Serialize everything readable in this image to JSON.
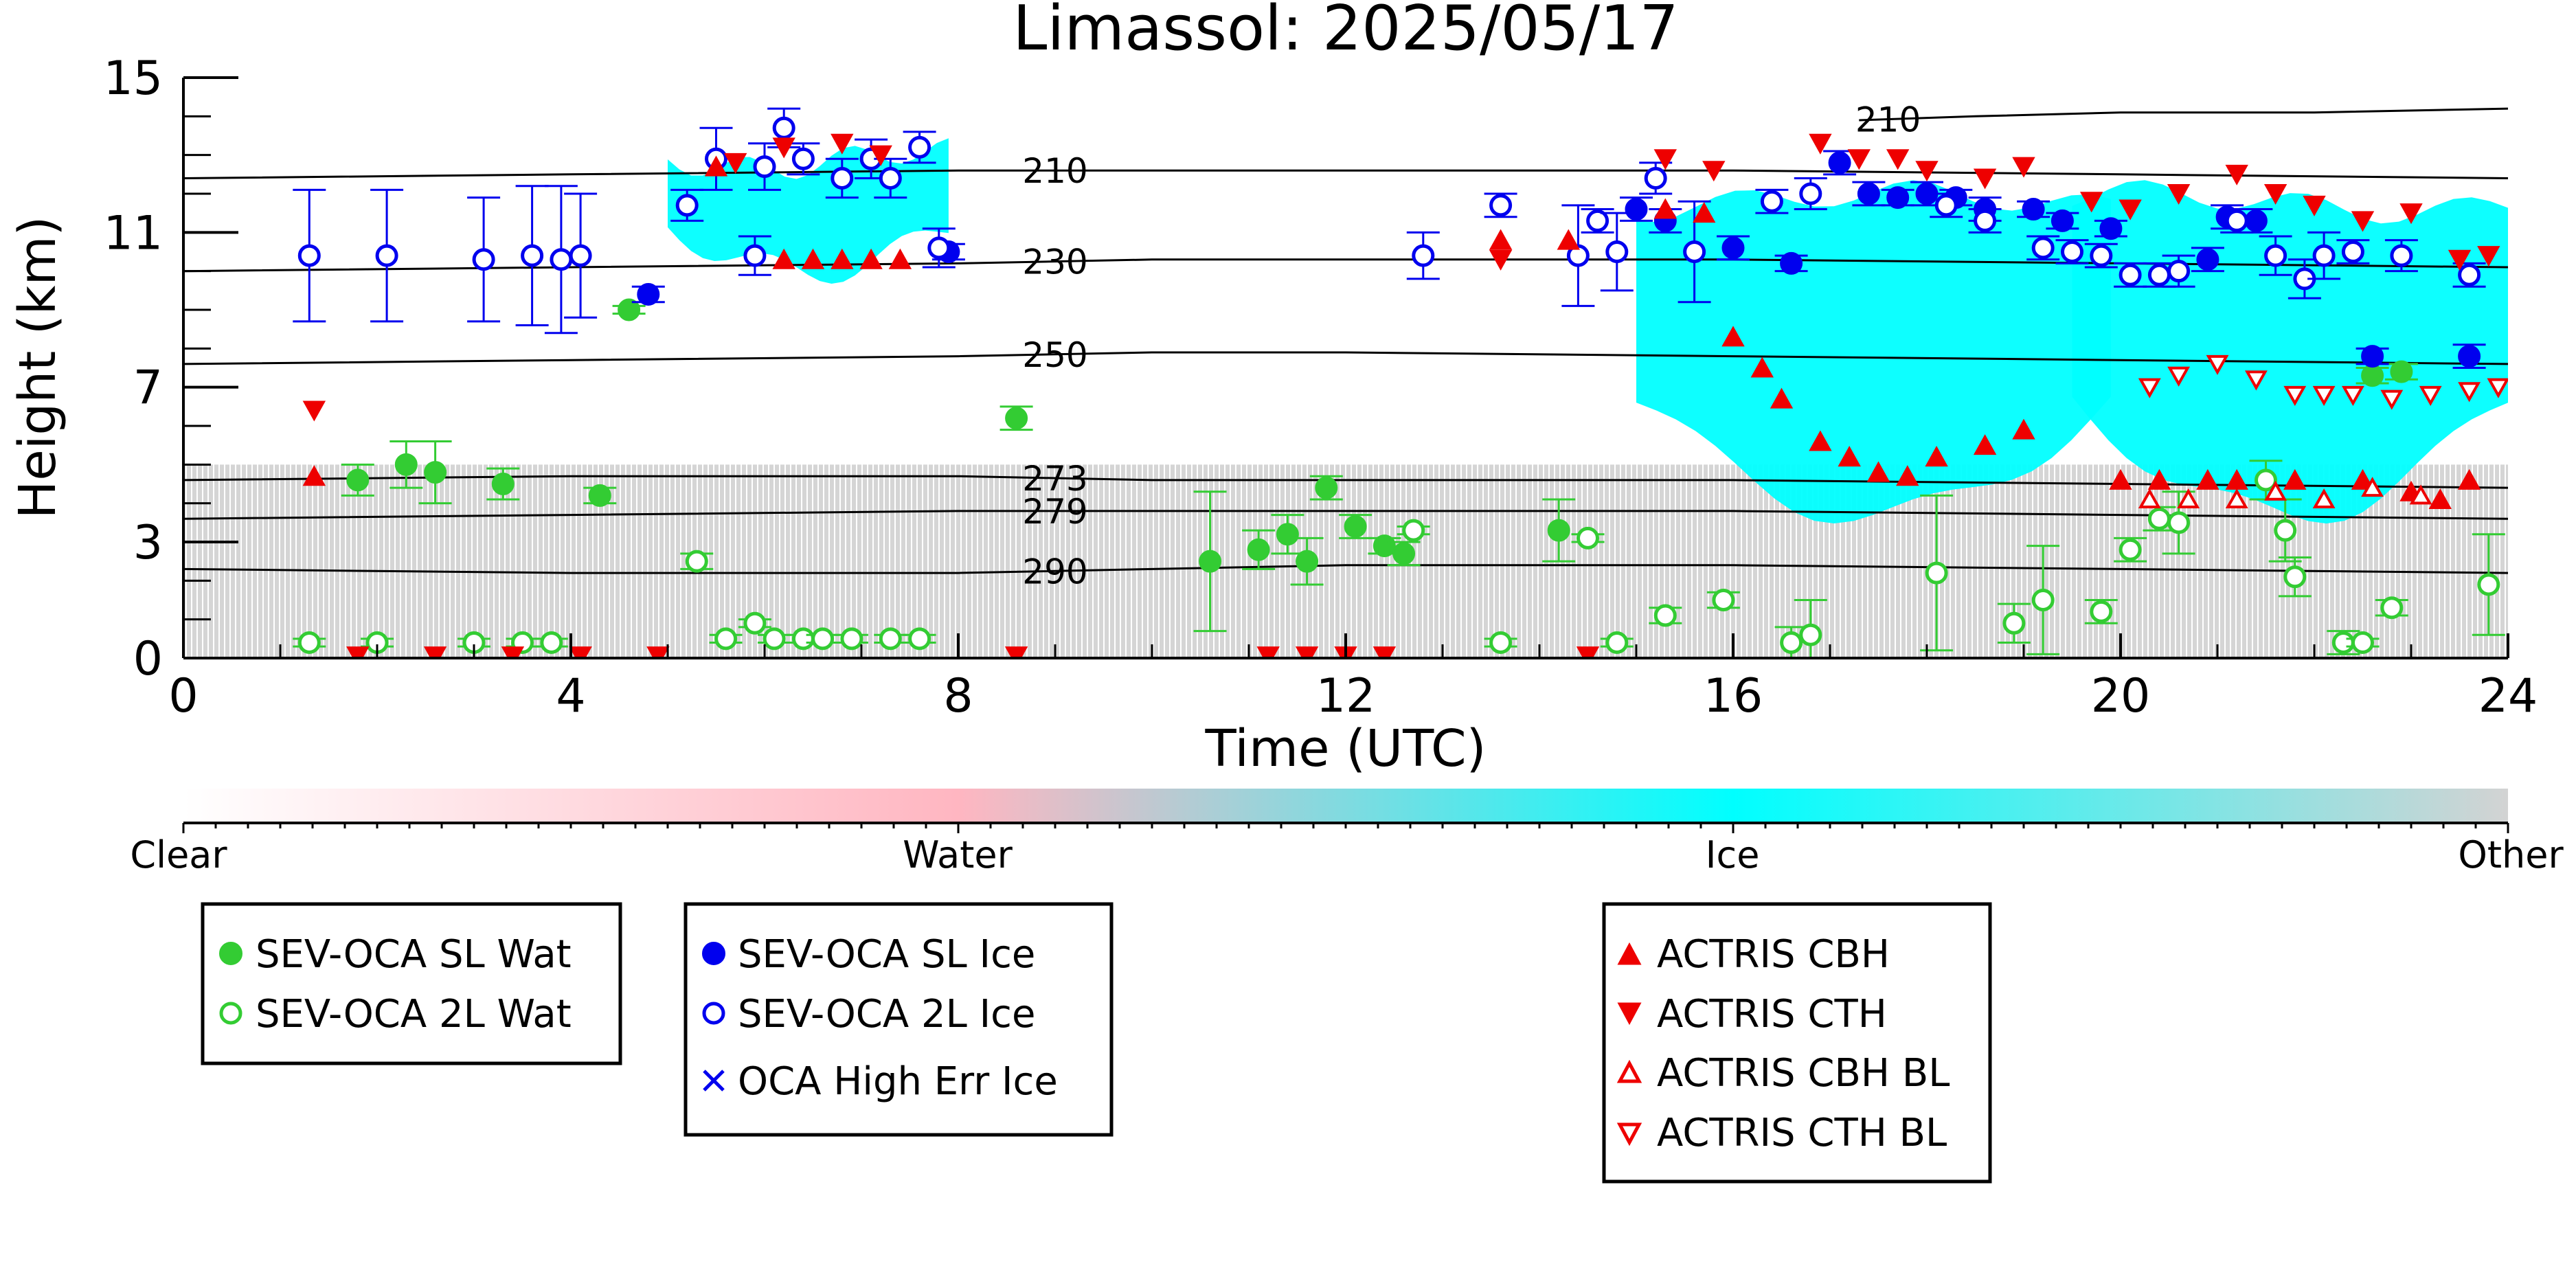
{
  "chart_data": {
    "type": "scatter",
    "title": "Limassol: 2025/05/17",
    "xlabel": "Time (UTC)",
    "ylabel": "Height (km)",
    "xlim": [
      0,
      24
    ],
    "ylim": [
      0,
      15
    ],
    "x_ticks": [
      "0",
      "4",
      "8",
      "12",
      "16",
      "20",
      "24"
    ],
    "y_ticks": [
      "0",
      "3",
      "7",
      "11",
      "15"
    ],
    "background_field": {
      "type": "heatmap",
      "classes": [
        "Clear",
        "Water",
        "Ice",
        "Other"
      ],
      "colors": {
        "Clear": "#ffffff",
        "Water": "#ffb6c1",
        "Ice": "#00ffff",
        "Other": "#d3d3d3"
      },
      "ice_regions": [
        {
          "x": [
            5.0,
            7.9
          ],
          "y": [
            9.8,
            13.1
          ]
        },
        {
          "x": [
            15.0,
            19.9
          ],
          "y": [
            3.5,
            12.0
          ]
        },
        {
          "x": [
            19.5,
            24.0
          ],
          "y": [
            3.5,
            12.0
          ]
        }
      ],
      "other_regions": [
        {
          "x": [
            0.0,
            24.0
          ],
          "y": [
            0.0,
            5.0
          ]
        }
      ]
    },
    "temperature_contours": [
      {
        "label": "210",
        "x": [
          0,
          4,
          8,
          10,
          12,
          16,
          20,
          24
        ],
        "y": [
          12.4,
          12.5,
          12.6,
          12.6,
          12.6,
          12.6,
          12.5,
          12.4
        ]
      },
      {
        "label": "230",
        "x": [
          0,
          4,
          8,
          10,
          12,
          16,
          20,
          24
        ],
        "y": [
          10.0,
          10.1,
          10.2,
          10.3,
          10.3,
          10.3,
          10.2,
          10.1
        ]
      },
      {
        "label": "250",
        "x": [
          0,
          4,
          8,
          10,
          12,
          16,
          20,
          24
        ],
        "y": [
          7.6,
          7.7,
          7.8,
          7.9,
          7.9,
          7.8,
          7.7,
          7.6
        ]
      },
      {
        "label": "273",
        "x": [
          0,
          4,
          8,
          10,
          12,
          16,
          20,
          24
        ],
        "y": [
          4.6,
          4.7,
          4.7,
          4.6,
          4.6,
          4.6,
          4.5,
          4.4
        ]
      },
      {
        "label": "279",
        "x": [
          0,
          4,
          8,
          10,
          12,
          16,
          20,
          24
        ],
        "y": [
          3.6,
          3.7,
          3.8,
          3.8,
          3.8,
          3.8,
          3.7,
          3.6
        ]
      },
      {
        "label": "290",
        "x": [
          0,
          4,
          8,
          10,
          12,
          16,
          20,
          24
        ],
        "y": [
          2.3,
          2.2,
          2.2,
          2.3,
          2.4,
          2.4,
          2.3,
          2.2
        ]
      },
      {
        "label": "210",
        "x": [
          17.3,
          18.5,
          20,
          22,
          24
        ],
        "y": [
          13.9,
          14.0,
          14.1,
          14.1,
          14.2
        ]
      }
    ],
    "series": [
      {
        "name": "SEV-OCA SL Wat",
        "marker": "filled-circle",
        "color": "#33cc33",
        "x": [
          1.8,
          2.3,
          2.6,
          3.3,
          4.3,
          4.6,
          8.6,
          10.6,
          11.1,
          11.4,
          11.6,
          11.8,
          12.1,
          12.4,
          12.6,
          14.2,
          22.6,
          22.9
        ],
        "y": [
          4.6,
          5.0,
          4.8,
          4.5,
          4.2,
          9.0,
          6.2,
          2.5,
          2.8,
          3.2,
          2.5,
          4.4,
          3.4,
          2.9,
          2.7,
          3.3,
          7.3,
          7.4
        ],
        "err": [
          0.4,
          0.6,
          0.8,
          0.4,
          0.2,
          0.1,
          0.3,
          1.8,
          0.5,
          0.5,
          0.6,
          0.3,
          0.3,
          0.2,
          0.3,
          0.8,
          0.2,
          0.2
        ]
      },
      {
        "name": "SEV-OCA 2L Wat",
        "marker": "open-circle",
        "color": "#33cc33",
        "x": [
          1.3,
          2.0,
          3.0,
          3.5,
          3.8,
          5.3,
          5.6,
          5.9,
          6.1,
          6.4,
          6.6,
          6.9,
          7.3,
          7.6,
          12.7,
          13.6,
          14.5,
          14.8,
          15.3,
          15.9,
          16.6,
          16.8,
          18.1,
          18.9,
          19.2,
          19.8,
          20.1,
          20.4,
          20.6,
          21.5,
          21.7,
          21.8,
          22.3,
          22.5,
          22.8,
          23.8
        ],
        "y": [
          0.4,
          0.4,
          0.4,
          0.4,
          0.4,
          2.5,
          0.5,
          0.9,
          0.5,
          0.5,
          0.5,
          0.5,
          0.5,
          0.5,
          3.3,
          0.4,
          3.1,
          0.4,
          1.1,
          1.5,
          0.4,
          0.6,
          2.2,
          0.9,
          1.5,
          1.2,
          2.8,
          3.6,
          3.5,
          4.6,
          3.3,
          2.1,
          0.4,
          0.4,
          1.3,
          1.9
        ],
        "err": [
          0.1,
          0.1,
          0.1,
          0.1,
          0.1,
          0.2,
          0.1,
          0.1,
          0.1,
          0.1,
          0.1,
          0.1,
          0.1,
          0.1,
          0.1,
          0.1,
          0.1,
          0.1,
          0.2,
          0.2,
          0.4,
          0.9,
          2.0,
          0.5,
          1.4,
          0.3,
          0.3,
          0.3,
          0.8,
          0.5,
          0.8,
          0.5,
          0.3,
          0.1,
          0.2,
          1.3
        ]
      },
      {
        "name": "SEV-OCA SL Ice",
        "marker": "filled-circle",
        "color": "#0000ee",
        "x": [
          4.8,
          7.9,
          15.0,
          15.3,
          16.0,
          16.6,
          17.1,
          17.4,
          17.7,
          18.0,
          18.3,
          18.6,
          19.1,
          19.4,
          19.9,
          20.9,
          21.1,
          21.4,
          22.6,
          23.6
        ],
        "y": [
          9.4,
          10.5,
          11.6,
          11.3,
          10.6,
          10.2,
          12.8,
          12.0,
          11.9,
          12.0,
          11.9,
          11.6,
          11.6,
          11.3,
          11.1,
          10.3,
          11.4,
          11.3,
          7.8,
          7.8
        ],
        "err": [
          0.2,
          0.2,
          0.3,
          0.3,
          0.3,
          0.2,
          0.3,
          0.3,
          0.2,
          0.3,
          0.2,
          0.3,
          0.2,
          0.2,
          0.2,
          0.3,
          0.3,
          0.3,
          0.2,
          0.3
        ]
      },
      {
        "name": "SEV-OCA 2L Ice",
        "marker": "open-circle",
        "color": "#0000ee",
        "x": [
          1.3,
          2.1,
          3.1,
          3.6,
          3.9,
          4.1,
          5.2,
          5.5,
          5.9,
          6.0,
          6.2,
          6.4,
          6.8,
          7.1,
          7.3,
          7.6,
          7.8,
          12.8,
          13.6,
          14.4,
          14.6,
          14.8,
          15.2,
          15.6,
          16.4,
          16.8,
          18.2,
          18.6,
          19.2,
          19.5,
          19.8,
          20.1,
          20.4,
          20.6,
          21.2,
          21.6,
          21.9,
          22.1,
          22.4,
          22.9,
          23.6
        ],
        "y": [
          10.4,
          10.4,
          10.3,
          10.4,
          10.3,
          10.4,
          11.7,
          12.9,
          10.4,
          12.7,
          13.7,
          12.9,
          12.4,
          12.9,
          12.4,
          13.2,
          10.6,
          10.4,
          11.7,
          10.4,
          11.3,
          10.5,
          12.4,
          10.5,
          11.8,
          12.0,
          11.7,
          11.3,
          10.6,
          10.5,
          10.4,
          9.9,
          9.9,
          10.0,
          11.3,
          10.4,
          9.8,
          10.4,
          10.5,
          10.4,
          9.9
        ],
        "err": [
          1.7,
          1.7,
          1.6,
          1.8,
          1.9,
          1.6,
          0.4,
          0.8,
          0.5,
          0.6,
          0.5,
          0.4,
          0.5,
          0.5,
          0.5,
          0.4,
          0.5,
          0.6,
          0.3,
          1.3,
          0.3,
          1.0,
          0.4,
          1.3,
          0.3,
          0.4,
          0.3,
          0.3,
          0.3,
          0.3,
          0.3,
          0.3,
          0.3,
          0.4,
          0.3,
          0.5,
          0.5,
          0.6,
          0.3,
          0.4,
          0.3
        ]
      },
      {
        "name": "OCA High Err Ice",
        "marker": "x",
        "color": "#0000ee",
        "x": [],
        "y": []
      },
      {
        "name": "ACTRIS CBH",
        "marker": "filled-triangle-up",
        "color": "#ee0000",
        "x": [
          1.35,
          5.5,
          6.2,
          6.5,
          6.8,
          7.1,
          7.4,
          13.6,
          14.3,
          15.3,
          15.7,
          16.0,
          16.3,
          16.5,
          16.9,
          17.2,
          17.5,
          17.8,
          18.1,
          18.6,
          19.0,
          20.0,
          20.4,
          20.9,
          21.2,
          21.8,
          22.5,
          23.0,
          23.3,
          23.6
        ],
        "y": [
          4.7,
          12.7,
          10.3,
          10.3,
          10.3,
          10.3,
          10.3,
          10.8,
          10.8,
          11.6,
          11.5,
          8.3,
          7.5,
          6.7,
          5.6,
          5.2,
          4.8,
          4.7,
          5.2,
          5.5,
          5.9,
          4.6,
          4.6,
          4.6,
          4.6,
          4.6,
          4.6,
          4.3,
          4.1,
          4.6
        ],
        "err": []
      },
      {
        "name": "ACTRIS CTH",
        "marker": "filled-triangle-down",
        "color": "#ee0000",
        "x": [
          1.35,
          1.8,
          2.6,
          3.4,
          4.1,
          4.9,
          5.7,
          6.2,
          6.8,
          7.2,
          8.6,
          11.2,
          11.6,
          12.0,
          12.4,
          13.6,
          14.5,
          15.3,
          15.8,
          16.9,
          17.3,
          17.7,
          18.0,
          18.6,
          19.0,
          19.7,
          20.1,
          20.6,
          21.2,
          21.6,
          22.0,
          22.5,
          23.0,
          23.5,
          23.8
        ],
        "y": [
          6.4,
          0.05,
          0.05,
          0.05,
          0.05,
          0.05,
          12.8,
          13.2,
          13.3,
          13.0,
          0.05,
          0.05,
          0.05,
          0.05,
          0.05,
          10.3,
          0.05,
          12.9,
          12.6,
          13.3,
          12.9,
          12.9,
          12.6,
          12.4,
          12.7,
          11.8,
          11.6,
          12.0,
          12.5,
          12.0,
          11.7,
          11.3,
          11.5,
          10.3,
          10.4
        ],
        "err": []
      },
      {
        "name": "ACTRIS CBH BL",
        "marker": "open-triangle-up",
        "color": "#ee0000",
        "x": [
          20.3,
          20.7,
          21.2,
          21.6,
          22.1,
          22.6,
          23.1
        ],
        "y": [
          4.1,
          4.1,
          4.1,
          4.3,
          4.1,
          4.4,
          4.2
        ],
        "err": []
      },
      {
        "name": "ACTRIS CTH BL",
        "marker": "open-triangle-down",
        "color": "#ee0000",
        "x": [
          20.3,
          20.6,
          21.0,
          21.4,
          21.8,
          22.1,
          22.4,
          22.8,
          23.2,
          23.6,
          23.9
        ],
        "y": [
          7.0,
          7.3,
          7.6,
          7.2,
          6.8,
          6.8,
          6.8,
          6.7,
          6.8,
          6.9,
          7.0
        ],
        "err": []
      }
    ],
    "colorbar": {
      "labels": [
        "Clear",
        "Water",
        "Ice",
        "Other"
      ],
      "stops": [
        "#ffffff",
        "#ffb6c1",
        "#00ffff",
        "#d3d3d3"
      ]
    },
    "legends": [
      {
        "entries": [
          "SEV-OCA SL Wat",
          "SEV-OCA 2L Wat"
        ]
      },
      {
        "entries": [
          "SEV-OCA SL Ice",
          "SEV-OCA 2L Ice",
          "OCA High Err Ice"
        ]
      },
      {
        "entries": [
          "ACTRIS CBH",
          "ACTRIS CTH",
          "ACTRIS CBH BL",
          "ACTRIS CTH BL"
        ]
      }
    ],
    "grid": false
  }
}
